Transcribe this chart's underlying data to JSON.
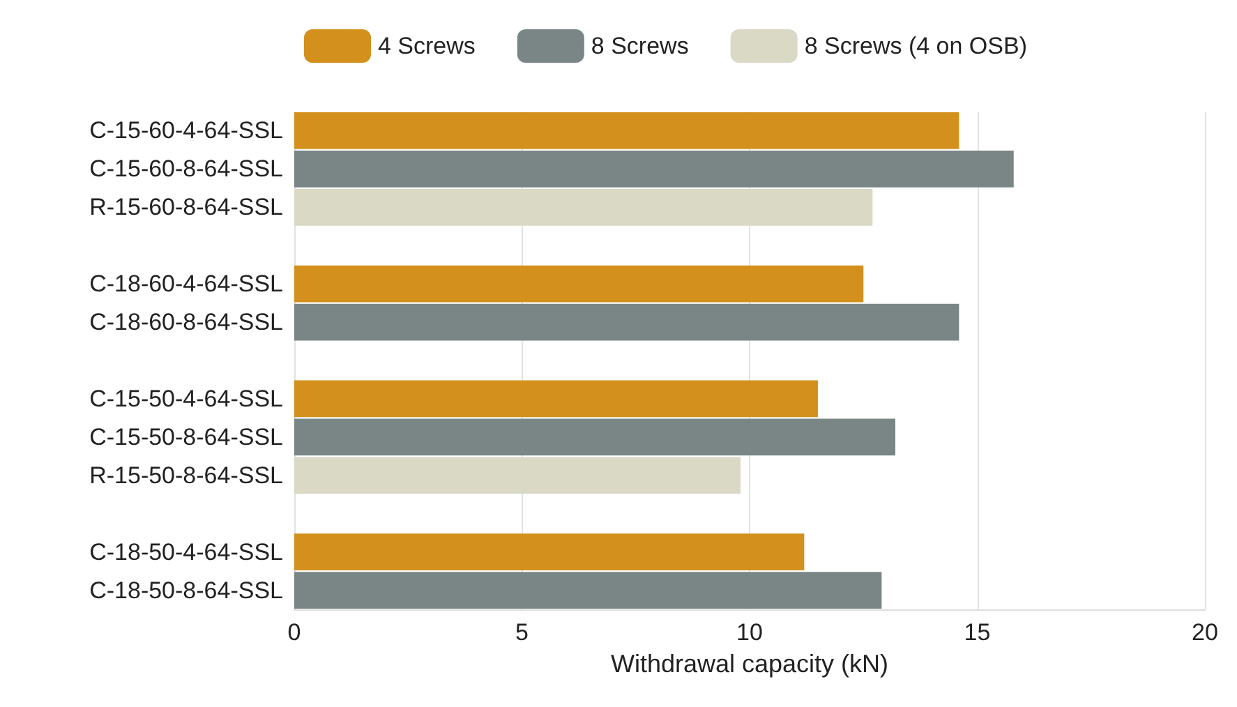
{
  "chart_data": {
    "type": "bar",
    "orientation": "horizontal",
    "xlabel": "Withdrawal capacity (kN)",
    "categories": [
      "C-15-60-4-64-SSL",
      "C-15-60-8-64-SSL",
      "R-15-60-8-64-SSL",
      null,
      "C-18-60-4-64-SSL",
      "C-18-60-8-64-SSL",
      null,
      "C-15-50-4-64-SSL",
      "C-15-50-8-64-SSL",
      "R-15-50-8-64-SSL",
      null,
      "C-18-50-4-64-SSL",
      "C-18-50-8-64-SSL"
    ],
    "series": [
      {
        "name": "4 Screws",
        "color": "#d4901c",
        "values": [
          14.6,
          null,
          null,
          null,
          12.5,
          null,
          null,
          11.5,
          null,
          null,
          null,
          11.2,
          null
        ]
      },
      {
        "name": "8 Screws",
        "color": "#7a8686",
        "values": [
          null,
          15.8,
          null,
          null,
          null,
          14.6,
          null,
          null,
          13.2,
          null,
          null,
          null,
          12.9
        ]
      },
      {
        "name": "8 Screws (4 on OSB)",
        "color": "#dad9c6",
        "values": [
          null,
          null,
          12.7,
          null,
          null,
          null,
          null,
          null,
          null,
          9.8,
          null,
          null,
          null
        ]
      }
    ],
    "xlim": [
      0,
      20
    ],
    "xticks": [
      0,
      5,
      10,
      15,
      20
    ],
    "grid": "x",
    "legend": "top"
  }
}
